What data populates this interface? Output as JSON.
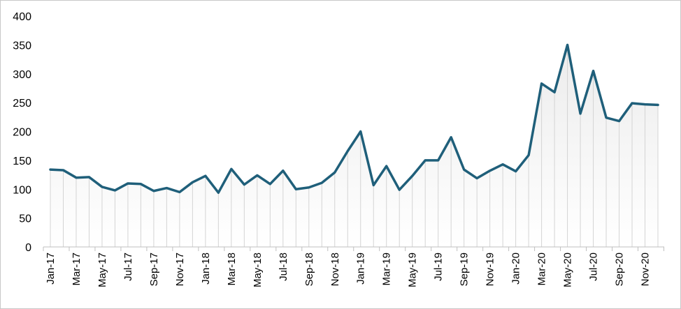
{
  "chart_data": {
    "type": "area",
    "title": "",
    "xlabel": "",
    "ylabel": "",
    "ylim": [
      0,
      400
    ],
    "yticks": [
      0,
      50,
      100,
      150,
      200,
      250,
      300,
      350,
      400
    ],
    "grid": false,
    "legend": "none",
    "colors": {
      "line": "#1f5f7a",
      "droplines": "#d4d4d4",
      "fill_top": "#ececec",
      "fill_bottom": "#ffffff",
      "axis": "#bfbfbf"
    },
    "categories": [
      "Jan-17",
      "Feb-17",
      "Mar-17",
      "Apr-17",
      "May-17",
      "Jun-17",
      "Jul-17",
      "Aug-17",
      "Sep-17",
      "Oct-17",
      "Nov-17",
      "Dec-17",
      "Jan-18",
      "Feb-18",
      "Mar-18",
      "Apr-18",
      "May-18",
      "Jun-18",
      "Jul-18",
      "Aug-18",
      "Sep-18",
      "Oct-18",
      "Nov-18",
      "Dec-18",
      "Jan-19",
      "Feb-19",
      "Mar-19",
      "Apr-19",
      "May-19",
      "Jun-19",
      "Jul-19",
      "Aug-19",
      "Sep-19",
      "Oct-19",
      "Nov-19",
      "Dec-19",
      "Jan-20",
      "Feb-20",
      "Mar-20",
      "Apr-20",
      "May-20",
      "Jun-20",
      "Jul-20",
      "Aug-20",
      "Sep-20",
      "Oct-20",
      "Nov-20",
      "Dec-20"
    ],
    "tick_labels": [
      "Jan-17",
      "Mar-17",
      "May-17",
      "Jul-17",
      "Sep-17",
      "Nov-17",
      "Jan-18",
      "Mar-18",
      "May-18",
      "Jul-18",
      "Sep-18",
      "Nov-18",
      "Jan-19",
      "Mar-19",
      "May-19",
      "Jul-19",
      "Sep-19",
      "Nov-19",
      "Jan-20",
      "Mar-20",
      "May-20",
      "Jul-20",
      "Sep-20",
      "Nov-20"
    ],
    "values": [
      134,
      133,
      120,
      121,
      104,
      98,
      110,
      109,
      97,
      102,
      95,
      112,
      123,
      94,
      135,
      108,
      124,
      109,
      132,
      100,
      103,
      111,
      129,
      166,
      200,
      107,
      140,
      99,
      123,
      150,
      150,
      190,
      134,
      119,
      132,
      143,
      131,
      159,
      283,
      268,
      350,
      231,
      305,
      224,
      218,
      249,
      247,
      246
    ]
  }
}
